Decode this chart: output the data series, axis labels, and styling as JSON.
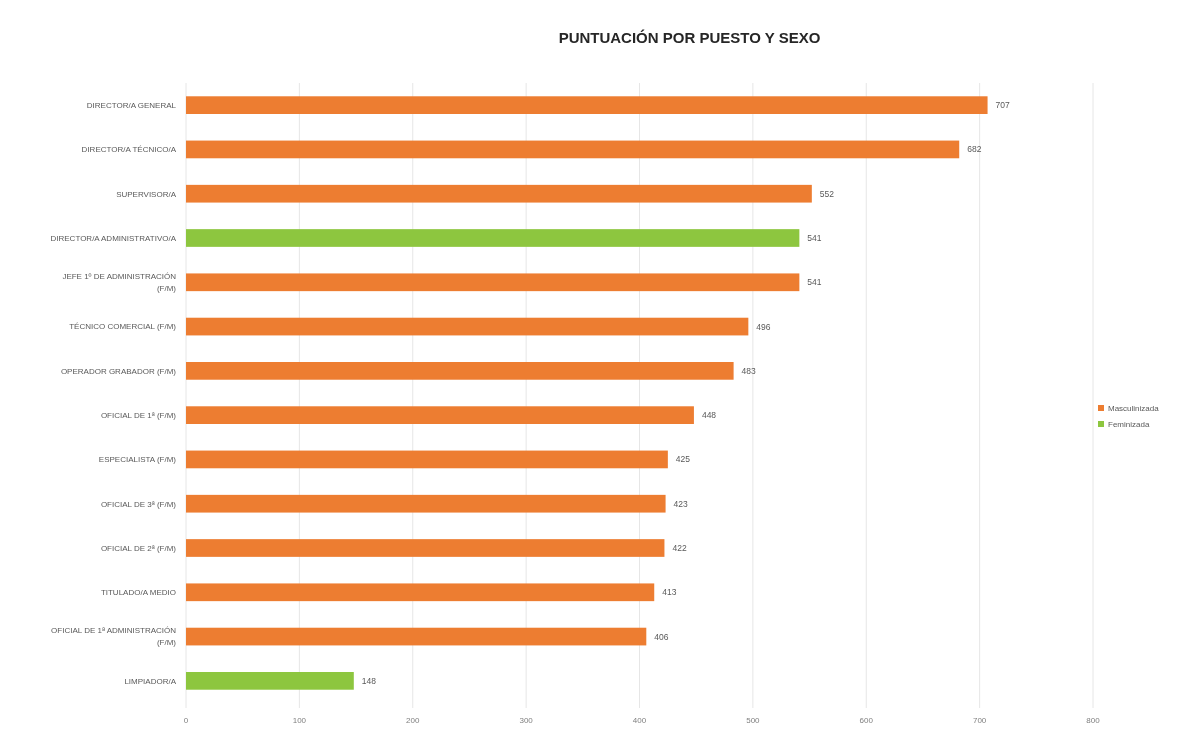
{
  "chart_data": {
    "type": "bar",
    "orientation": "horizontal",
    "title": "PUNTUACIÓN POR PUESTO Y SEXO",
    "categories": [
      "DIRECTOR/A GENERAL",
      "DIRECTOR/A TÉCNICO/A",
      "SUPERVISOR/A",
      "DIRECTOR/A ADMINISTRATIVO/A",
      "JEFE 1º DE ADMINISTRACIÓN (F/M)",
      "TÉCNICO COMERCIAL (F/M)",
      "OPERADOR GRABADOR (F/M)",
      "OFICIAL DE 1ª (F/M)",
      "ESPECIALISTA (F/M)",
      "OFICIAL DE 3ª (F/M)",
      "OFICIAL DE 2ª (F/M)",
      "TITULADO/A MEDIO",
      "OFICIAL DE 1ª ADMINISTRACIÓN (F/M)",
      "LIMPIADOR/A"
    ],
    "series": [
      {
        "name": "Masculinizada",
        "color": "#ed7d31",
        "values": [
          707,
          682,
          552,
          null,
          541,
          496,
          483,
          448,
          425,
          423,
          422,
          413,
          406,
          null
        ]
      },
      {
        "name": "Feminizada",
        "color": "#8dc63f",
        "values": [
          null,
          null,
          null,
          541,
          null,
          null,
          null,
          null,
          null,
          null,
          null,
          null,
          null,
          148
        ]
      }
    ],
    "xlim": [
      0,
      800
    ],
    "xticks": [
      0,
      100,
      200,
      300,
      400,
      500,
      600,
      700,
      800
    ],
    "grid": "x",
    "legend": "right",
    "data_labels": true
  }
}
